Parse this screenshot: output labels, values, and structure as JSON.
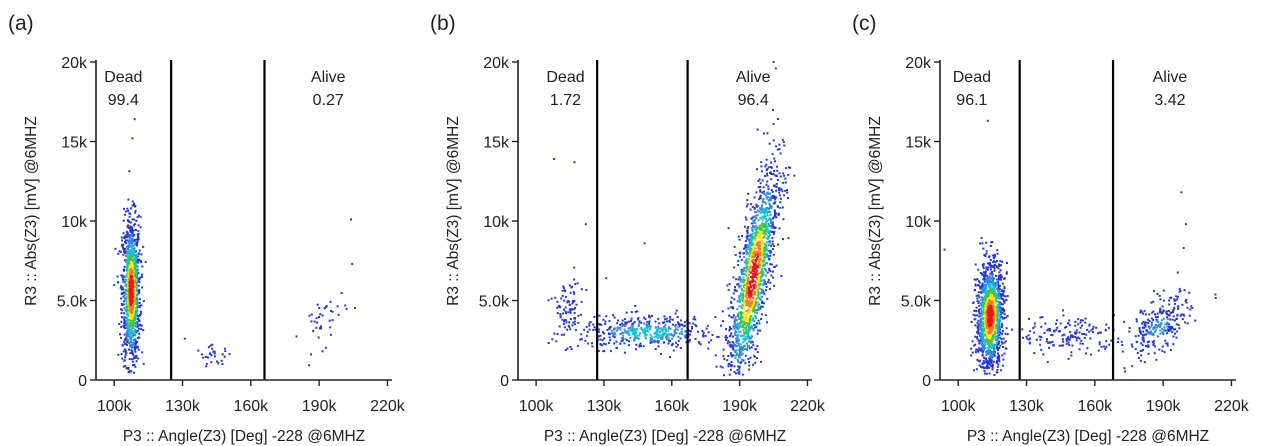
{
  "figure": {
    "colors": {
      "axis": "#222222",
      "gate": "#000000",
      "low_density": "#2436d6",
      "mid_density": "#16c2d6",
      "high_density": "#e5141b"
    }
  },
  "chart_data": [
    {
      "type": "scatter",
      "panel_label": "(a)",
      "xlabel": "P3 :: Angle(Z3) [Deg] -228 @6MHZ",
      "ylabel": "R3 :: Abs(Z3) [mV] @6MHZ",
      "xlim": [
        92000,
        222000
      ],
      "ylim": [
        0,
        20000
      ],
      "xticks": [
        100000,
        130000,
        160000,
        190000,
        220000
      ],
      "xtick_labels": [
        "100k",
        "130k",
        "160k",
        "190k",
        "220k"
      ],
      "yticks": [
        0,
        5000,
        10000,
        15000,
        20000
      ],
      "ytick_labels": [
        "0",
        "5.0k",
        "10k",
        "15k",
        "20k"
      ],
      "gates": [
        125000,
        166000
      ],
      "regions": [
        {
          "name": "Dead",
          "percent": "99.4",
          "x": 104000
        },
        {
          "name": "Alive",
          "percent": "0.27",
          "x": 194000
        }
      ],
      "clusters": [
        {
          "cx": 107500,
          "cy": 5600,
          "sx": 2000,
          "sy": 2300,
          "n": 1100,
          "corr": 0.0
        },
        {
          "cx": 144000,
          "cy": 1500,
          "sx": 4000,
          "sy": 300,
          "n": 30,
          "corr": 0.0
        },
        {
          "cx": 192000,
          "cy": 3800,
          "sx": 5000,
          "sy": 900,
          "n": 40,
          "corr": 0.4
        }
      ],
      "outliers": [
        [
          204000,
          10100
        ],
        [
          204500,
          7300
        ],
        [
          109000,
          16400
        ],
        [
          108000,
          15200
        ],
        [
          131000,
          2600
        ]
      ]
    },
    {
      "type": "scatter",
      "panel_label": "(b)",
      "xlabel": "P3 :: Angle(Z3) [Deg] -228 @6MHZ",
      "ylabel": "R3 :: Abs(Z3) [mV] @6MHZ",
      "xlim": [
        92000,
        222000
      ],
      "ylim": [
        0,
        20000
      ],
      "xticks": [
        100000,
        130000,
        160000,
        190000,
        220000
      ],
      "xtick_labels": [
        "100k",
        "130k",
        "160k",
        "190k",
        "220k"
      ],
      "yticks": [
        0,
        5000,
        10000,
        15000,
        20000
      ],
      "ytick_labels": [
        "0",
        "5.0k",
        "10k",
        "15k",
        "20k"
      ],
      "gates": [
        127000,
        167000
      ],
      "regions": [
        {
          "name": "Dead",
          "percent": "1.72",
          "x": 113000
        },
        {
          "name": "Alive",
          "percent": "96.4",
          "x": 196000
        }
      ],
      "clusters": [
        {
          "cx": 196000,
          "cy": 6500,
          "sx": 5500,
          "sy": 3500,
          "n": 1500,
          "corr": 0.75
        },
        {
          "cx": 150000,
          "cy": 3000,
          "sx": 15000,
          "sy": 500,
          "n": 450,
          "corr": 0.0
        },
        {
          "cx": 114000,
          "cy": 4300,
          "sx": 3500,
          "sy": 1000,
          "n": 90,
          "corr": 0.0
        }
      ],
      "outliers": [
        [
          108000,
          13900
        ],
        [
          117000,
          13700
        ],
        [
          148000,
          8600
        ],
        [
          122000,
          9800
        ],
        [
          131000,
          6400
        ],
        [
          205000,
          20000
        ],
        [
          206000,
          19600
        ]
      ]
    },
    {
      "type": "scatter",
      "panel_label": "(c)",
      "xlabel": "P3 :: Angle(Z3) [Deg] -228 @6MHZ",
      "ylabel": "R3 :: Abs(Z3) [mV] @6MHZ",
      "xlim": [
        92000,
        222000
      ],
      "ylim": [
        0,
        20000
      ],
      "xticks": [
        100000,
        130000,
        160000,
        190000,
        220000
      ],
      "xtick_labels": [
        "100k",
        "130k",
        "160k",
        "190k",
        "220k"
      ],
      "yticks": [
        0,
        5000,
        10000,
        15000,
        20000
      ],
      "ytick_labels": [
        "0",
        "5.0k",
        "10k",
        "15k",
        "20k"
      ],
      "gates": [
        127000,
        168000
      ],
      "regions": [
        {
          "name": "Dead",
          "percent": "96.1",
          "x": 106000
        },
        {
          "name": "Alive",
          "percent": "3.42",
          "x": 193000
        }
      ],
      "clusters": [
        {
          "cx": 114000,
          "cy": 4000,
          "sx": 3000,
          "sy": 1700,
          "n": 1300,
          "corr": 0.1
        },
        {
          "cx": 148000,
          "cy": 2800,
          "sx": 11000,
          "sy": 600,
          "n": 160,
          "corr": 0.0
        },
        {
          "cx": 188000,
          "cy": 3300,
          "sx": 7000,
          "sy": 1000,
          "n": 260,
          "corr": 0.5
        }
      ],
      "outliers": [
        [
          198000,
          11800
        ],
        [
          200000,
          9800
        ],
        [
          199000,
          8300
        ],
        [
          113000,
          16300
        ],
        [
          94000,
          8200
        ],
        [
          120000,
          5300
        ]
      ]
    }
  ]
}
